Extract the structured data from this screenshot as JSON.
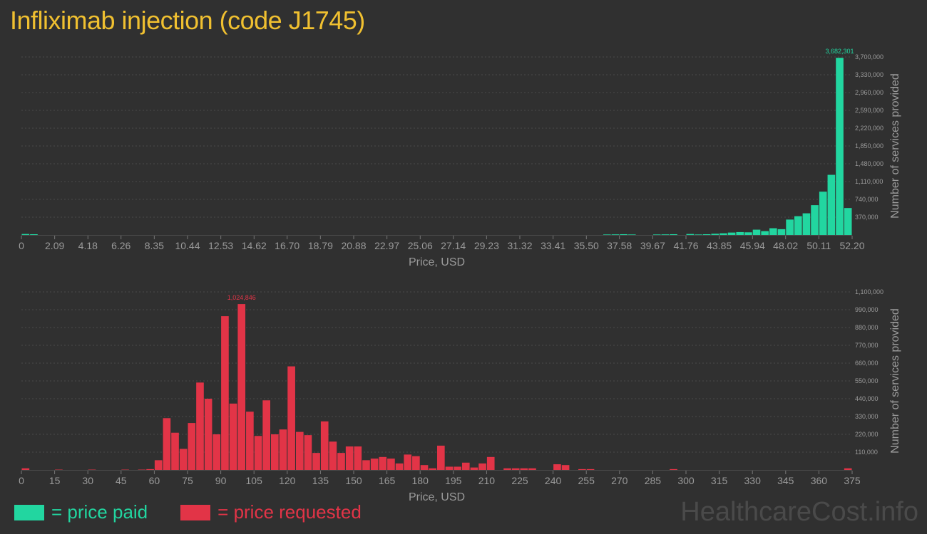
{
  "page": {
    "title": "Infliximab injection (code J1745)",
    "watermark": "HealthcareCost.info"
  },
  "colors": {
    "paid": "#22d6a0",
    "requested": "#e23447",
    "title": "#f0c030",
    "text": "#9a9a9a",
    "grid": "#4a4a4a",
    "background": "#303030"
  },
  "legend": {
    "paid_label": "= price paid",
    "requested_label": "= price requested"
  },
  "chart_data": [
    {
      "type": "bar",
      "name": "price paid",
      "xlabel": "Price, USD",
      "ylabel": "Number of services provided",
      "xlim": [
        0,
        52.2
      ],
      "ylim": [
        0,
        3700000
      ],
      "x_ticks": [
        "0",
        "2.09",
        "4.18",
        "6.26",
        "8.35",
        "10.44",
        "12.53",
        "14.62",
        "16.70",
        "18.79",
        "20.88",
        "22.97",
        "25.06",
        "27.14",
        "29.23",
        "31.32",
        "33.41",
        "35.50",
        "37.58",
        "39.67",
        "41.76",
        "43.85",
        "45.94",
        "48.02",
        "50.11",
        "52.20"
      ],
      "y_ticks": [
        "370,000",
        "740,000",
        "1,110,000",
        "1,480,000",
        "1,850,000",
        "2,220,000",
        "2,590,000",
        "2,960,000",
        "3,330,000",
        "3,700,000"
      ],
      "max_label": "3,682,301",
      "bin_width": 0.522,
      "x": [
        0.261,
        0.783,
        36.801,
        37.323,
        37.845,
        38.367,
        39.933,
        40.455,
        40.977,
        42.021,
        42.543,
        43.065,
        43.587,
        44.109,
        44.631,
        45.153,
        45.675,
        46.197,
        46.719,
        47.241,
        47.763,
        48.285,
        48.807,
        49.329,
        49.851,
        50.373,
        50.895,
        51.417,
        51.939
      ],
      "values": [
        20000,
        15000,
        10000,
        12000,
        15000,
        10000,
        10000,
        12000,
        15000,
        20000,
        10000,
        15000,
        25000,
        35000,
        50000,
        60000,
        55000,
        110000,
        80000,
        140000,
        120000,
        320000,
        390000,
        450000,
        620000,
        900000,
        1250000,
        3682301,
        560000
      ]
    },
    {
      "type": "bar",
      "name": "price requested",
      "xlabel": "Price, USD",
      "ylabel": "Number of services provided",
      "xlim": [
        0,
        375
      ],
      "ylim": [
        0,
        1100000
      ],
      "x_ticks": [
        "0",
        "15",
        "30",
        "45",
        "60",
        "75",
        "90",
        "105",
        "120",
        "135",
        "150",
        "165",
        "180",
        "195",
        "210",
        "225",
        "240",
        "255",
        "270",
        "285",
        "300",
        "315",
        "330",
        "345",
        "360",
        "375"
      ],
      "y_ticks": [
        "110,000",
        "220,000",
        "330,000",
        "440,000",
        "550,000",
        "660,000",
        "770,000",
        "880,000",
        "990,000",
        "1,100,000"
      ],
      "max_label": "1,024,846",
      "bin_width": 3.75,
      "x": [
        1.875,
        16.875,
        31.875,
        46.875,
        54.375,
        58.125,
        61.875,
        65.625,
        69.375,
        73.125,
        76.875,
        80.625,
        84.375,
        88.125,
        91.875,
        95.625,
        99.375,
        103.125,
        106.875,
        110.625,
        114.375,
        118.125,
        121.875,
        125.625,
        129.375,
        133.125,
        136.875,
        140.625,
        144.375,
        148.125,
        151.875,
        155.625,
        159.375,
        163.125,
        166.875,
        170.625,
        174.375,
        178.125,
        181.875,
        185.625,
        189.375,
        193.125,
        196.875,
        200.625,
        204.375,
        208.125,
        211.875,
        219.375,
        223.125,
        226.875,
        230.625,
        241.875,
        245.625,
        253.125,
        256.875,
        294.375,
        373.125
      ],
      "values": [
        10000,
        2000,
        2000,
        2000,
        2000,
        5000,
        60000,
        320000,
        230000,
        130000,
        290000,
        540000,
        440000,
        220000,
        950000,
        410000,
        1024846,
        360000,
        210000,
        430000,
        220000,
        250000,
        640000,
        235000,
        215000,
        105000,
        300000,
        175000,
        105000,
        145000,
        145000,
        60000,
        70000,
        80000,
        70000,
        40000,
        95000,
        85000,
        30000,
        10000,
        150000,
        20000,
        20000,
        45000,
        15000,
        40000,
        80000,
        10000,
        10000,
        10000,
        10000,
        35000,
        30000,
        5000,
        5000,
        5000,
        10000
      ]
    }
  ]
}
